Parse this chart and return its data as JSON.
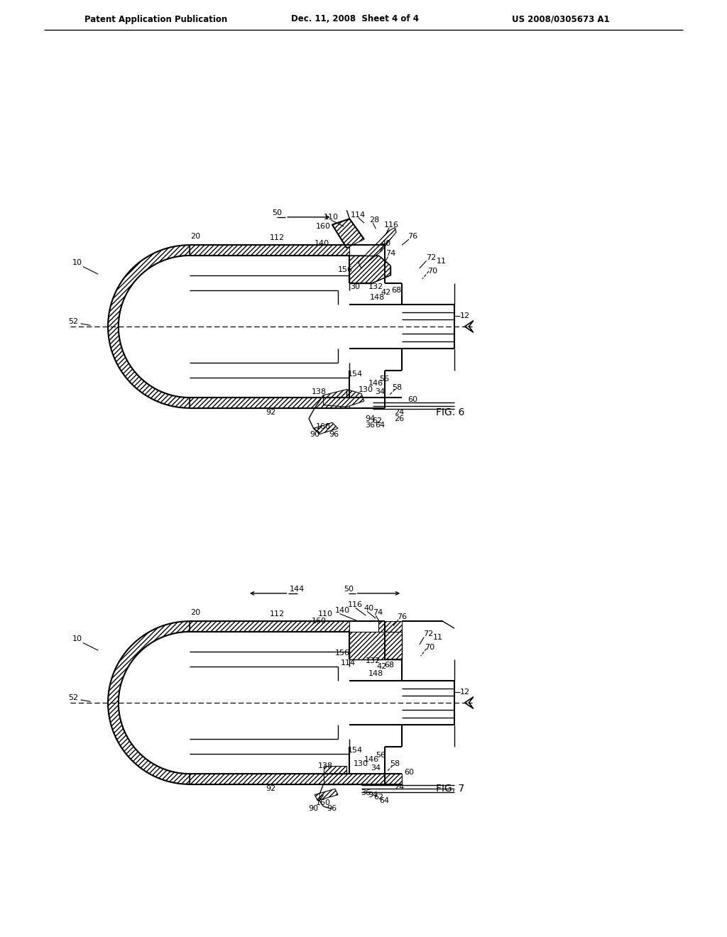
{
  "bg_color": "#ffffff",
  "line_color": "#000000",
  "header_left": "Patent Application Publication",
  "header_mid": "Dec. 11, 2008  Sheet 4 of 4",
  "header_right": "US 2008/0305673 A1",
  "page_width": 10.24,
  "page_height": 13.2,
  "fig6_label": "FIG. 6",
  "fig7_label": "FIG. 7"
}
